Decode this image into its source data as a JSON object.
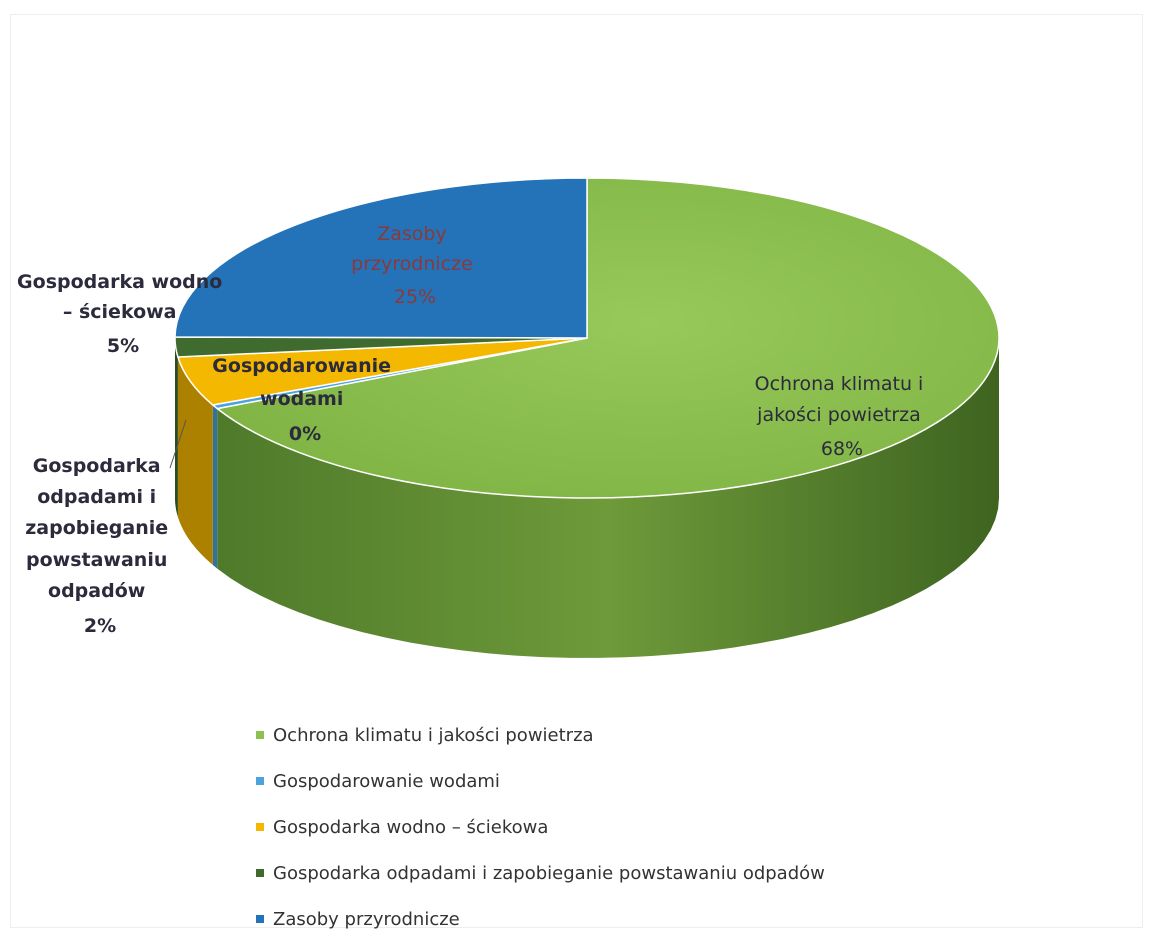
{
  "chart_data": {
    "type": "pie",
    "title": "",
    "categories": [
      "Ochrona klimatu i jakości powietrza",
      "Gospodarowanie wodami",
      "Gospodarka wodno – ściekowa",
      "Gospodarka odpadami i zapobieganie powstawaniu odpadów",
      "Zasoby przyrodnicze"
    ],
    "values": [
      68,
      0.4,
      5,
      2,
      25
    ],
    "data_labels": [
      "Ochrona klimatu i jakości powietrza 68%",
      "Gospodarowanie wodami 0%",
      "Gospodarka wodno – ściekowa 5%",
      "Gospodarka odpadami i zapobieganie powstawaniu odpadów 2%",
      "Zasoby przyrodnicze 25%"
    ],
    "colors": [
      "#8cc152",
      "#4aa3df",
      "#f5b800",
      "#3f6b2e",
      "#2472b8"
    ],
    "legend_position": "bottom",
    "style": "3d"
  },
  "labels": {
    "ochrona": [
      "Ochrona klimatu i",
      "jakości powietrza",
      "68%"
    ],
    "gospodarowanie": [
      "Gospodarowanie",
      "wodami",
      "0%"
    ],
    "wodno": [
      "Gospodarka wodno",
      "– ściekowa",
      "5%"
    ],
    "odpady": [
      "Gospodarka",
      "odpadami i",
      "zapobieganie",
      "powstawaniu",
      "odpadów",
      "2%"
    ],
    "zasoby": [
      "Zasoby",
      "przyrodnicze",
      "25%"
    ]
  },
  "legend": [
    {
      "label": "Ochrona klimatu i jakości powietrza",
      "color": "#8cc152"
    },
    {
      "label": "Gospodarowanie wodami",
      "color": "#4aa3df"
    },
    {
      "label": "Gospodarka wodno – ściekowa",
      "color": "#f5b800"
    },
    {
      "label": "Gospodarka odpadami i zapobieganie powstawaniu odpadów",
      "color": "#3f6b2e"
    },
    {
      "label": "Zasoby przyrodnicze",
      "color": "#2472b8"
    }
  ]
}
